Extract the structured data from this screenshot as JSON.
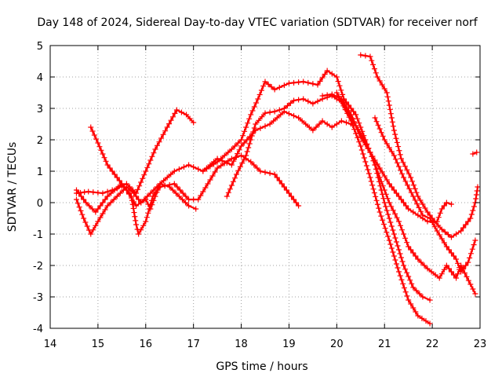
{
  "chart_data": {
    "type": "scatter",
    "title": "Day 148 of 2024, Sidereal Day-to-day VTEC variation (SDTVAR) for receiver norf",
    "xlabel": "GPS time / hours",
    "ylabel": "SDTVAR / TECUs",
    "xlim": [
      14,
      23
    ],
    "ylim": [
      -4,
      5
    ],
    "xticks": [
      14,
      15,
      16,
      17,
      18,
      19,
      20,
      21,
      22,
      23
    ],
    "yticks": [
      -4,
      -3,
      -2,
      -1,
      0,
      1,
      2,
      3,
      4,
      5
    ],
    "grid": true,
    "marker": "+",
    "color": "#ff0000",
    "series": [
      {
        "name": "series-1",
        "points": [
          [
            14.55,
            0.1
          ],
          [
            14.7,
            -0.5
          ],
          [
            14.85,
            -1.0
          ],
          [
            15.0,
            -0.6
          ],
          [
            15.2,
            -0.1
          ],
          [
            15.4,
            0.2
          ],
          [
            15.6,
            0.5
          ],
          [
            15.75,
            0.3
          ],
          [
            15.9,
            0.0
          ],
          [
            16.1,
            0.3
          ],
          [
            16.3,
            0.6
          ],
          [
            16.5,
            0.5
          ],
          [
            16.7,
            0.2
          ],
          [
            16.9,
            -0.1
          ],
          [
            17.05,
            -0.2
          ]
        ]
      },
      {
        "name": "series-2",
        "points": [
          [
            14.55,
            0.3
          ],
          [
            14.8,
            0.35
          ],
          [
            15.1,
            0.3
          ],
          [
            15.4,
            0.45
          ],
          [
            15.6,
            0.6
          ],
          [
            15.8,
            0.3
          ],
          [
            16.0,
            1.0
          ],
          [
            16.2,
            1.7
          ],
          [
            16.45,
            2.4
          ],
          [
            16.65,
            2.95
          ],
          [
            16.85,
            2.8
          ],
          [
            17.0,
            2.55
          ]
        ]
      },
      {
        "name": "series-3",
        "points": [
          [
            14.55,
            0.4
          ],
          [
            14.75,
            0.0
          ],
          [
            14.95,
            -0.3
          ],
          [
            15.2,
            0.2
          ],
          [
            15.5,
            0.6
          ],
          [
            15.7,
            0.2
          ],
          [
            15.8,
            -0.7
          ],
          [
            15.85,
            -1.0
          ],
          [
            16.0,
            -0.6
          ],
          [
            16.15,
            0.2
          ],
          [
            16.3,
            0.5
          ],
          [
            16.6,
            0.6
          ],
          [
            16.9,
            0.1
          ],
          [
            17.1,
            0.1
          ],
          [
            17.3,
            0.6
          ],
          [
            17.5,
            1.1
          ],
          [
            17.8,
            1.4
          ],
          [
            18.0,
            1.5
          ],
          [
            18.2,
            1.3
          ],
          [
            18.4,
            1.0
          ],
          [
            18.7,
            0.9
          ],
          [
            19.0,
            0.3
          ],
          [
            19.2,
            -0.1
          ]
        ]
      },
      {
        "name": "series-4",
        "points": [
          [
            14.85,
            2.4
          ],
          [
            15.0,
            1.9
          ],
          [
            15.2,
            1.2
          ],
          [
            15.4,
            0.8
          ],
          [
            15.6,
            0.4
          ],
          [
            15.8,
            -0.1
          ],
          [
            16.0,
            0.1
          ],
          [
            16.1,
            -0.2
          ],
          [
            16.3,
            0.6
          ],
          [
            16.6,
            1.0
          ],
          [
            16.9,
            1.2
          ],
          [
            17.2,
            1.0
          ],
          [
            17.5,
            1.3
          ],
          [
            17.8,
            1.7
          ],
          [
            18.0,
            2.0
          ],
          [
            18.2,
            2.8
          ],
          [
            18.35,
            3.3
          ],
          [
            18.5,
            3.85
          ],
          [
            18.7,
            3.6
          ],
          [
            19.0,
            3.8
          ],
          [
            19.3,
            3.85
          ],
          [
            19.6,
            3.75
          ],
          [
            19.8,
            4.2
          ],
          [
            20.0,
            4.0
          ],
          [
            20.15,
            3.3
          ],
          [
            20.4,
            2.8
          ],
          [
            20.6,
            2.0
          ],
          [
            20.8,
            1.2
          ],
          [
            21.0,
            0.0
          ],
          [
            21.2,
            -1.0
          ],
          [
            21.4,
            -2.0
          ],
          [
            21.6,
            -2.7
          ],
          [
            21.8,
            -3.0
          ],
          [
            21.95,
            -3.1
          ]
        ]
      },
      {
        "name": "series-5",
        "points": [
          [
            17.7,
            0.2
          ],
          [
            17.9,
            0.9
          ],
          [
            18.1,
            1.5
          ],
          [
            18.3,
            2.5
          ],
          [
            18.5,
            2.85
          ],
          [
            18.7,
            2.9
          ],
          [
            18.9,
            3.0
          ],
          [
            19.1,
            3.25
          ],
          [
            19.3,
            3.3
          ],
          [
            19.5,
            3.15
          ],
          [
            19.7,
            3.3
          ],
          [
            19.9,
            3.4
          ],
          [
            20.1,
            3.2
          ],
          [
            20.3,
            2.6
          ],
          [
            20.5,
            1.8
          ],
          [
            20.7,
            0.8
          ],
          [
            20.9,
            -0.3
          ],
          [
            21.1,
            -1.2
          ],
          [
            21.3,
            -2.2
          ],
          [
            21.5,
            -3.1
          ],
          [
            21.7,
            -3.6
          ],
          [
            21.95,
            -3.85
          ]
        ]
      },
      {
        "name": "series-6",
        "points": [
          [
            17.2,
            1.0
          ],
          [
            17.5,
            1.4
          ],
          [
            17.8,
            1.2
          ],
          [
            18.0,
            1.8
          ],
          [
            18.3,
            2.3
          ],
          [
            18.6,
            2.5
          ],
          [
            18.9,
            2.9
          ],
          [
            19.2,
            2.7
          ],
          [
            19.5,
            2.3
          ],
          [
            19.7,
            2.6
          ],
          [
            19.9,
            2.4
          ],
          [
            20.1,
            2.6
          ],
          [
            20.3,
            2.5
          ]
        ]
      },
      {
        "name": "series-7",
        "points": [
          [
            20.0,
            3.5
          ],
          [
            20.3,
            2.7
          ],
          [
            20.5,
            2.2
          ],
          [
            20.7,
            1.6
          ],
          [
            20.9,
            0.8
          ],
          [
            21.1,
            0.0
          ],
          [
            21.3,
            -0.6
          ],
          [
            21.5,
            -1.4
          ],
          [
            21.7,
            -1.8
          ],
          [
            21.9,
            -2.1
          ],
          [
            22.15,
            -2.4
          ],
          [
            22.3,
            -2.0
          ],
          [
            22.5,
            -2.4
          ],
          [
            22.6,
            -2.0
          ],
          [
            22.8,
            -2.6
          ],
          [
            22.9,
            -2.9
          ]
        ]
      },
      {
        "name": "series-8",
        "points": [
          [
            19.7,
            3.4
          ],
          [
            19.9,
            3.45
          ],
          [
            20.1,
            3.3
          ],
          [
            20.3,
            2.8
          ],
          [
            20.5,
            2.1
          ],
          [
            20.7,
            1.6
          ],
          [
            20.9,
            1.1
          ],
          [
            21.1,
            0.6
          ],
          [
            21.3,
            0.2
          ],
          [
            21.5,
            -0.2
          ],
          [
            21.7,
            -0.4
          ],
          [
            21.9,
            -0.6
          ],
          [
            22.1,
            -0.6
          ],
          [
            22.2,
            -0.2
          ],
          [
            22.3,
            0.0
          ],
          [
            22.4,
            -0.05
          ]
        ]
      },
      {
        "name": "series-9",
        "points": [
          [
            20.5,
            4.7
          ],
          [
            20.7,
            4.65
          ],
          [
            20.85,
            4.0
          ],
          [
            21.05,
            3.5
          ],
          [
            21.2,
            2.3
          ],
          [
            21.35,
            1.4
          ],
          [
            21.55,
            0.8
          ],
          [
            21.7,
            0.2
          ],
          [
            21.9,
            -0.3
          ],
          [
            22.05,
            -0.6
          ],
          [
            22.2,
            -0.85
          ],
          [
            22.4,
            -1.1
          ],
          [
            22.6,
            -0.9
          ],
          [
            22.8,
            -0.5
          ],
          [
            22.9,
            0.0
          ],
          [
            22.95,
            0.5
          ]
        ]
      },
      {
        "name": "series-10",
        "points": [
          [
            20.8,
            2.7
          ],
          [
            21.0,
            2.0
          ],
          [
            21.2,
            1.5
          ],
          [
            21.4,
            0.8
          ],
          [
            21.6,
            0.2
          ],
          [
            21.8,
            -0.4
          ],
          [
            21.95,
            -0.5
          ],
          [
            22.1,
            -0.9
          ],
          [
            22.3,
            -1.4
          ],
          [
            22.5,
            -1.8
          ],
          [
            22.6,
            -2.2
          ],
          [
            22.75,
            -1.9
          ],
          [
            22.9,
            -1.2
          ]
        ]
      },
      {
        "name": "series-11",
        "points": [
          [
            22.85,
            1.55
          ],
          [
            22.93,
            1.6
          ]
        ]
      }
    ]
  }
}
